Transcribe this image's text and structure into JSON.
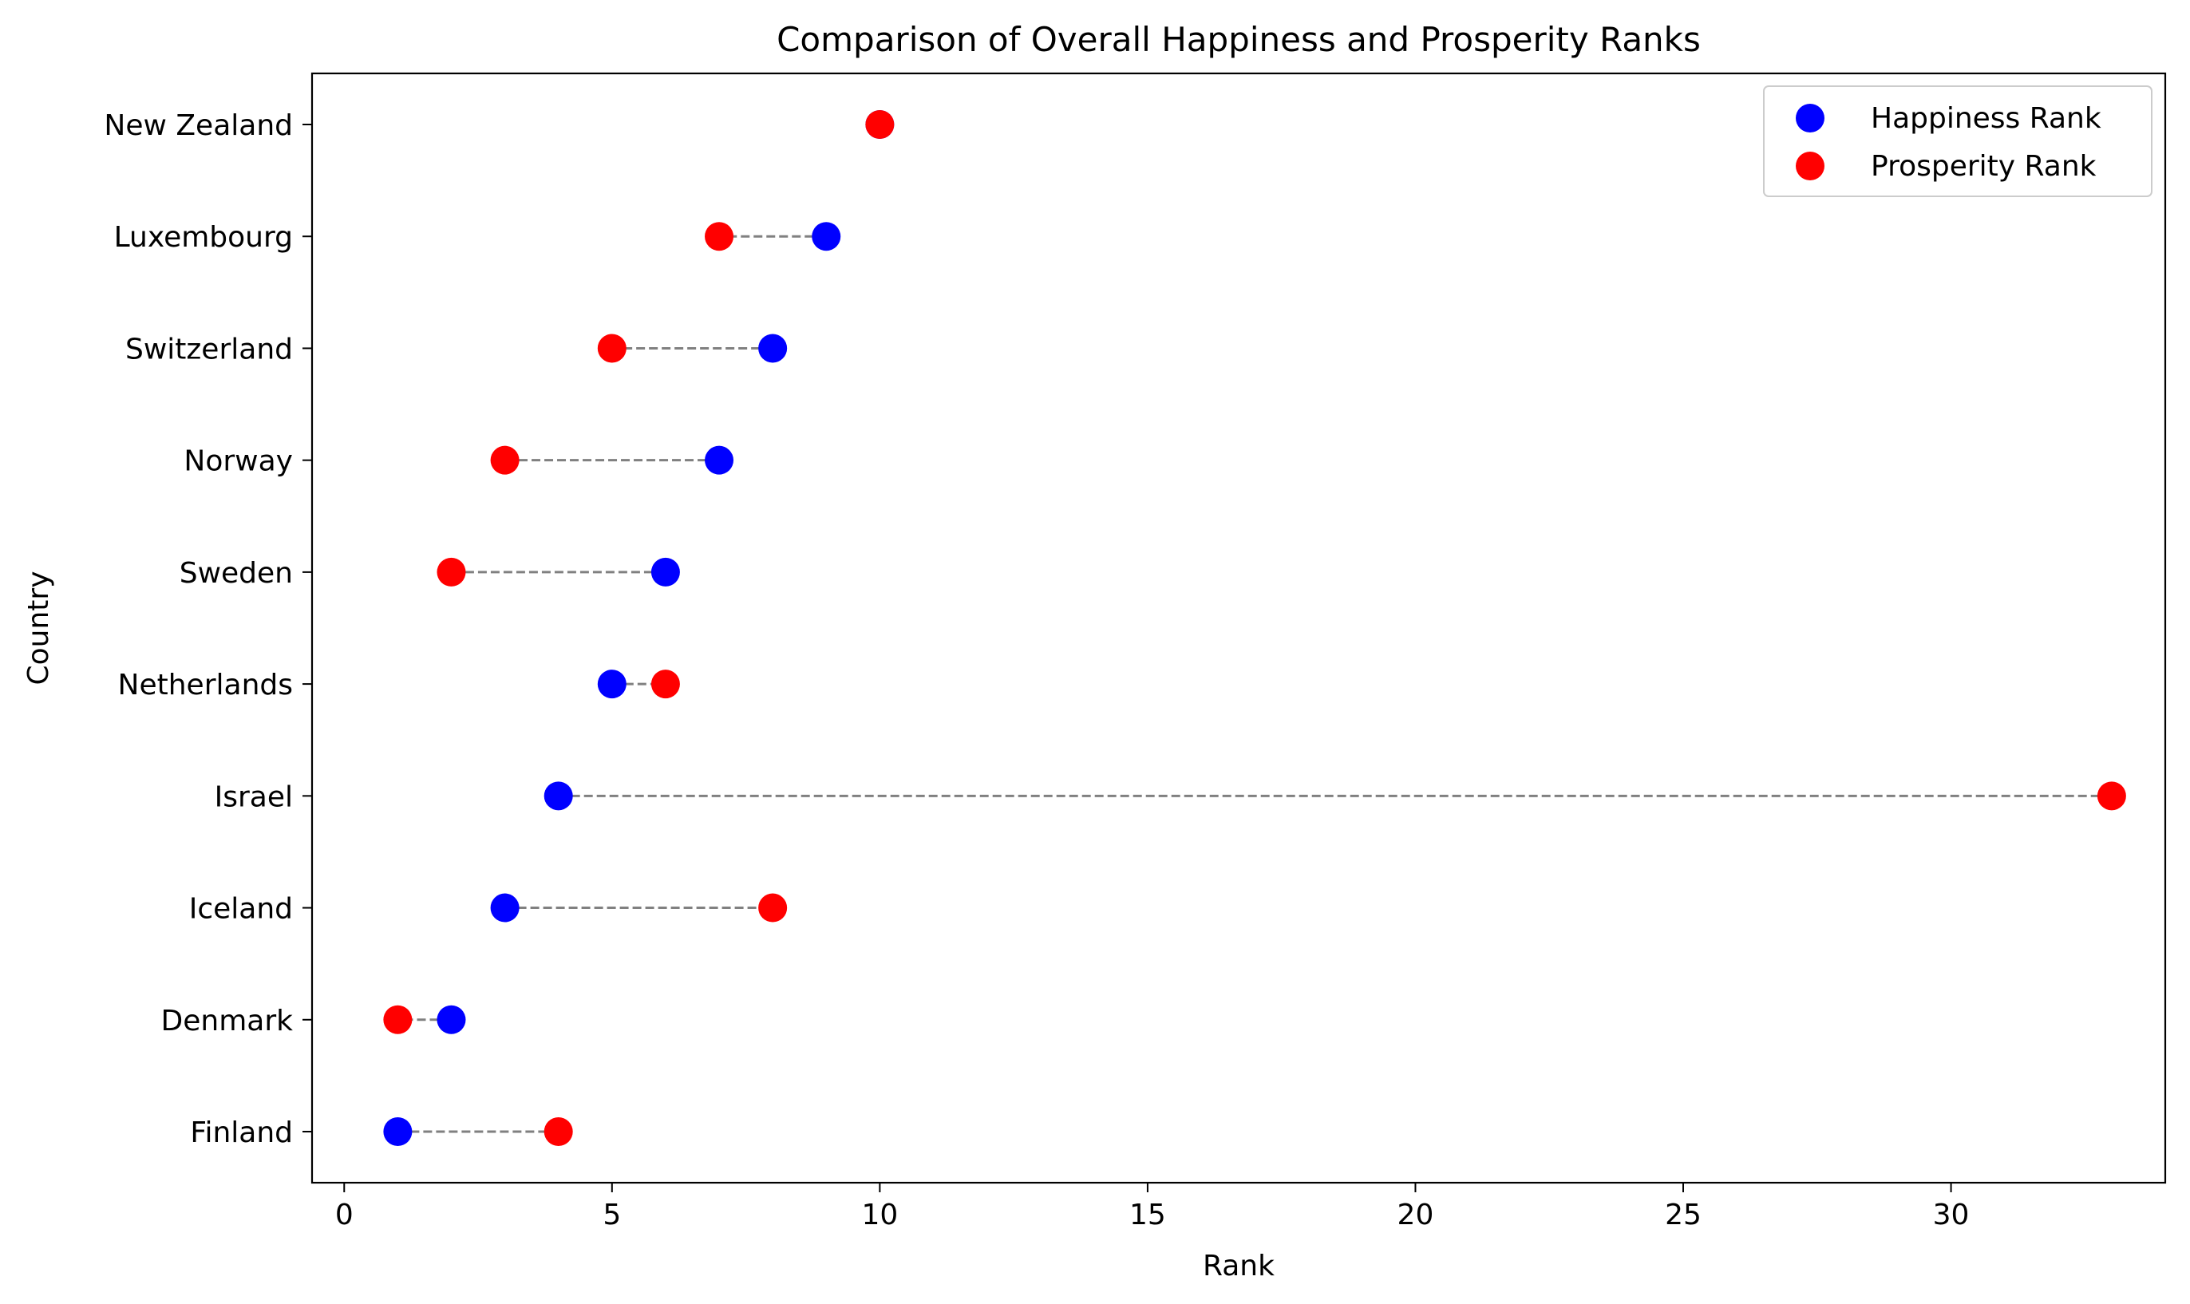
{
  "chart_data": {
    "type": "scatter",
    "title": "Comparison of Overall Happiness and Prosperity Ranks",
    "xlabel": "Rank",
    "ylabel": "Country",
    "xlim": [
      -0.6,
      34.0
    ],
    "xticks": [
      0,
      5,
      10,
      15,
      20,
      25,
      30
    ],
    "categories": [
      "Finland",
      "Denmark",
      "Iceland",
      "Israel",
      "Netherlands",
      "Sweden",
      "Norway",
      "Switzerland",
      "Luxembourg",
      "New Zealand"
    ],
    "series": [
      {
        "name": "Happiness Rank",
        "color": "#0000ff",
        "values": [
          1,
          2,
          3,
          4,
          5,
          6,
          7,
          8,
          9,
          10
        ]
      },
      {
        "name": "Prosperity Rank",
        "color": "#ff0000",
        "values": [
          4,
          1,
          8,
          33,
          6,
          2,
          3,
          5,
          7,
          10
        ]
      }
    ],
    "connector_color": "#808080",
    "legend_position": "top-right",
    "grid": false
  }
}
